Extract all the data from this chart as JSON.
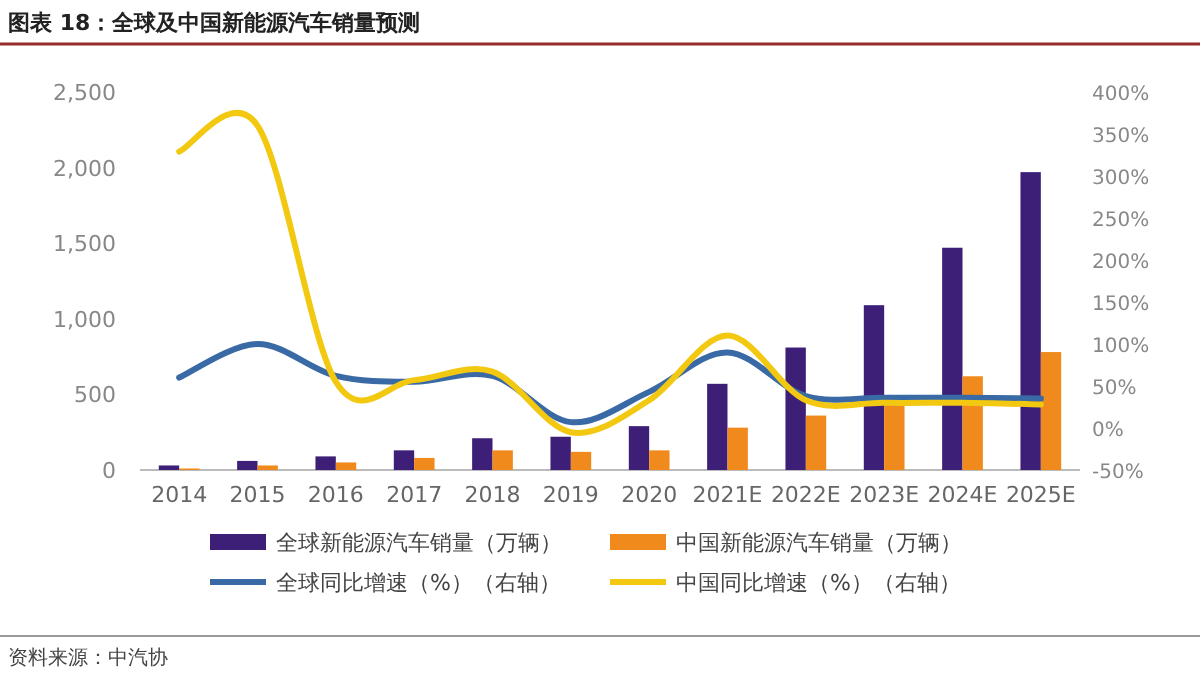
{
  "chart_data": {
    "type": "bar",
    "title": "图表 18：全球及中国新能源汽车销量预测",
    "categories": [
      "2014",
      "2015",
      "2016",
      "2017",
      "2018",
      "2019",
      "2020",
      "2021E",
      "2022E",
      "2023E",
      "2024E",
      "2025E"
    ],
    "series": [
      {
        "name": "全球新能源汽车销量（万辆）",
        "color": "#3d1f78",
        "values": [
          30,
          60,
          90,
          130,
          210,
          220,
          290,
          570,
          810,
          1090,
          1470,
          1970
        ]
      },
      {
        "name": "中国新能源汽车销量（万辆）",
        "color": "#f08a1c",
        "values": [
          10,
          30,
          50,
          80,
          130,
          120,
          130,
          280,
          360,
          450,
          620,
          780
        ]
      },
      {
        "name": "全球同比增速（%）（右轴）",
        "type": "line",
        "axis": "y2",
        "color": "#3a6aa5",
        "values": [
          60,
          100,
          62,
          55,
          62,
          7,
          43,
          90,
          38,
          36,
          36,
          35
        ]
      },
      {
        "name": "中国同比增速（%）（右轴）",
        "type": "line",
        "axis": "y2",
        "color": "#f2c811",
        "values": [
          329,
          360,
          55,
          57,
          67,
          -5,
          33,
          110,
          33,
          30,
          30,
          28
        ]
      }
    ],
    "ylim": [
      0,
      2500
    ],
    "yticks": [
      0,
      {
        "value": 500,
        "label": "500"
      },
      {
        "value": 1000,
        "label": "1,000"
      },
      {
        "value": 1500,
        "label": "1,500"
      },
      {
        "value": 2000,
        "label": "2,000"
      },
      {
        "value": 2500,
        "label": "2,500"
      }
    ],
    "y2lim": [
      -50,
      400
    ],
    "y2ticks": [
      {
        "value": -50,
        "label": "-50%"
      },
      {
        "value": 0,
        "label": "0%"
      },
      {
        "value": 50,
        "label": "50%"
      },
      {
        "value": 100,
        "label": "100%"
      },
      {
        "value": 150,
        "label": "150%"
      },
      {
        "value": 200,
        "label": "200%"
      },
      {
        "value": 250,
        "label": "250%"
      },
      {
        "value": 300,
        "label": "300%"
      },
      {
        "value": 350,
        "label": "350%"
      },
      {
        "value": 400,
        "label": "400%"
      }
    ],
    "legend": "bottom",
    "annotations": [
      "资料来源：中汽协"
    ]
  }
}
